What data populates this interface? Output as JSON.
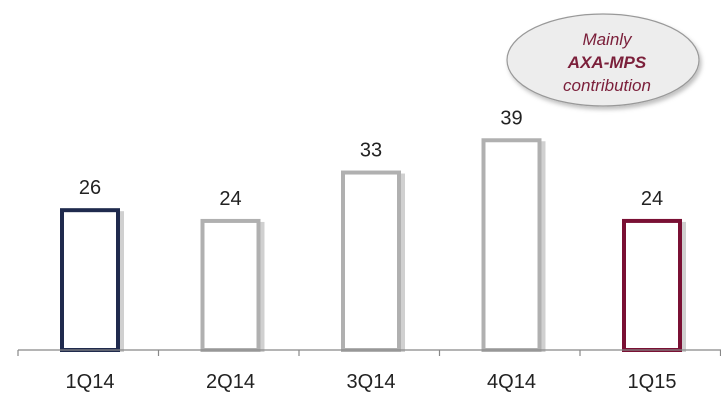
{
  "chart_data": {
    "type": "bar",
    "categories": [
      "1Q14",
      "2Q14",
      "3Q14",
      "4Q14",
      "1Q15"
    ],
    "values": [
      26,
      24,
      33,
      39,
      24
    ],
    "bar_colors": [
      "#1f2a4d",
      "#b0b0b0",
      "#b0b0b0",
      "#b0b0b0",
      "#7a1034"
    ],
    "ylim": [
      0,
      45
    ],
    "grid": false,
    "legend": "none"
  },
  "callout": {
    "line1": "Mainly",
    "line2": "AXA-MPS",
    "line3": "contribution",
    "text_color": "#7b1f3a",
    "fill_color": "#ededed",
    "border_color": "#999999"
  },
  "colors": {
    "axis": "#888888",
    "label": "#222222"
  }
}
